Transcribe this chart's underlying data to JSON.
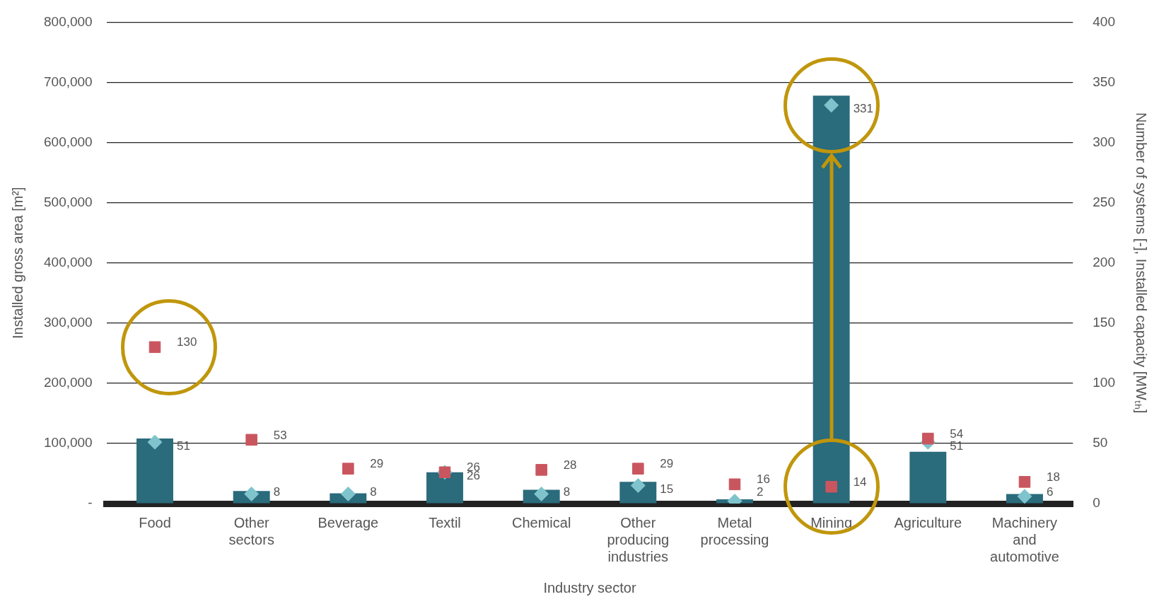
{
  "chart_data": {
    "type": "bar",
    "xlabel": "Industry sector",
    "ylabel": "Installed gross area [m²]",
    "y2label": "Number of systems [-], Installed capacity [MWₜₕ]",
    "categories": [
      "Food",
      "Other sectors",
      "Beverage",
      "Textil",
      "Chemical",
      "Other producing industries",
      "Metal processing",
      "Mining",
      "Agriculture",
      "Machinery and automotive"
    ],
    "series": [
      {
        "color": "#2a6b7c",
        "values": [
          108000,
          21000,
          17000,
          52000,
          23000,
          36000,
          7000,
          678000,
          86000,
          16000
        ]
      },
      {
        "type": "scatter",
        "axis": "y2",
        "marker": "square",
        "color": "#c9565f",
        "values": [
          130,
          53,
          29,
          26,
          28,
          29,
          16,
          14,
          54,
          18
        ],
        "value_labels": [
          "130",
          "53",
          "29",
          "26",
          "28",
          "29",
          "16",
          "14",
          "54",
          "18"
        ]
      },
      {
        "type": "scatter",
        "axis": "y2",
        "marker": "diamond",
        "color": "#7fc4cc",
        "values": [
          51,
          8,
          8,
          26,
          8,
          15,
          2,
          331,
          51,
          6
        ],
        "value_labels": [
          "51",
          "8",
          "8",
          "26",
          "8",
          "15",
          "2",
          "331",
          "51",
          "6"
        ]
      }
    ],
    "ylim": [
      0,
      800000
    ],
    "yticks": [
      {
        "value": 0,
        "label": "-"
      },
      {
        "value": 100000,
        "label": "100,000"
      },
      {
        "value": 200000,
        "label": "200,000"
      },
      {
        "value": 300000,
        "label": "300,000"
      },
      {
        "value": 400000,
        "label": "400,000"
      },
      {
        "value": 500000,
        "label": "500,000"
      },
      {
        "value": 600000,
        "label": "600,000"
      },
      {
        "value": 700000,
        "label": "700,000"
      },
      {
        "value": 800000,
        "label": "800,000"
      }
    ],
    "y2lim": [
      0,
      400
    ],
    "y2ticks": [
      0,
      50,
      100,
      150,
      200,
      250,
      300,
      350,
      400
    ],
    "grid": "y",
    "legend": false
  }
}
